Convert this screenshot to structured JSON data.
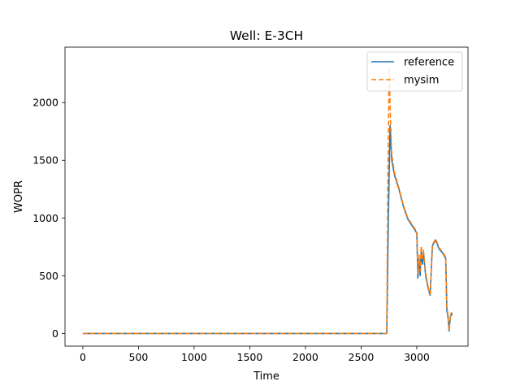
{
  "chart_data": {
    "type": "line",
    "title": "Well: E-3CH",
    "xlabel": "Time",
    "ylabel": "WOPR",
    "xlim": [
      -160,
      3460
    ],
    "ylim": [
      -110,
      2480
    ],
    "xticks": [
      0,
      500,
      1000,
      1500,
      2000,
      2500,
      3000
    ],
    "yticks": [
      0,
      500,
      1000,
      1500,
      2000
    ],
    "grid": false,
    "legend_position": "top-right",
    "series": [
      {
        "name": "reference",
        "color": "#1f77b4",
        "style": "solid",
        "x": [
          0,
          2730,
          2745,
          2760,
          2775,
          2800,
          2840,
          2880,
          2920,
          2960,
          3000,
          3010,
          3020,
          3030,
          3040,
          3050,
          3060,
          3080,
          3100,
          3120,
          3140,
          3170,
          3200,
          3230,
          3260,
          3270,
          3280,
          3290,
          3300,
          3310,
          3320
        ],
        "y": [
          0,
          0,
          1000,
          1800,
          1500,
          1370,
          1250,
          1100,
          990,
          930,
          870,
          480,
          650,
          500,
          720,
          600,
          700,
          500,
          400,
          330,
          760,
          810,
          730,
          700,
          650,
          200,
          150,
          20,
          130,
          170,
          160
        ]
      },
      {
        "name": "mysim",
        "color": "#ff7f0e",
        "style": "dashed",
        "x": [
          0,
          2730,
          2740,
          2752,
          2762,
          2775,
          2800,
          2840,
          2880,
          2920,
          2960,
          3000,
          3010,
          3020,
          3030,
          3040,
          3050,
          3060,
          3080,
          3100,
          3120,
          3140,
          3170,
          3200,
          3230,
          3260,
          3270,
          3280,
          3290,
          3300,
          3310,
          3320
        ],
        "y": [
          0,
          0,
          1300,
          2300,
          1900,
          1550,
          1390,
          1260,
          1110,
          1000,
          940,
          880,
          520,
          680,
          540,
          760,
          640,
          720,
          520,
          410,
          340,
          770,
          820,
          740,
          710,
          660,
          220,
          170,
          30,
          140,
          180,
          170
        ]
      }
    ]
  }
}
